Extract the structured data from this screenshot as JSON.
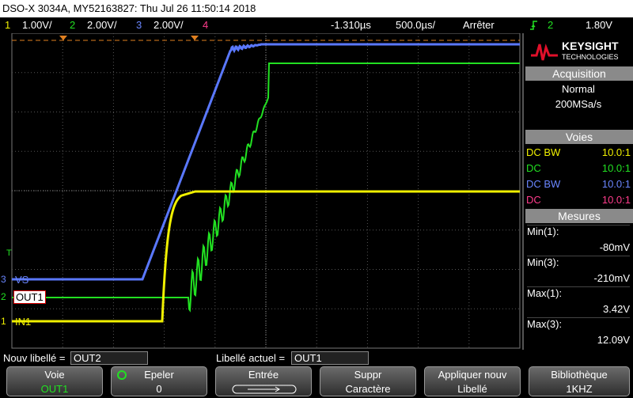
{
  "header": {
    "title": "DSO-X 3034A, MY52163827: Thu Jul 26 11:50:14 2018"
  },
  "status_bar": {
    "channels": [
      {
        "number": "1",
        "scale": "1.00V/"
      },
      {
        "number": "2",
        "scale": "2.00V/"
      },
      {
        "number": "3",
        "scale": "2.00V/"
      },
      {
        "number": "4"
      }
    ],
    "time_offset": "-1.310µs",
    "time_scale": "500.0µs/",
    "run_state": "Arrêter",
    "trigger_channel": "2",
    "trigger_level": "1.80V"
  },
  "side_panel": {
    "brand": "KEYSIGHT",
    "brand_sub": "TECHNOLOGIES",
    "acquisition": {
      "title": "Acquisition",
      "mode": "Normal",
      "rate": "200MSa/s"
    },
    "channels": {
      "title": "Voies",
      "rows": [
        {
          "coupling": "DC BW",
          "probe": "10.0:1"
        },
        {
          "coupling": "DC",
          "probe": "10.0:1"
        },
        {
          "coupling": "DC BW",
          "probe": "10.0:1"
        },
        {
          "coupling": "DC",
          "probe": "10.0:1"
        }
      ]
    },
    "measurements": {
      "title": "Mesures",
      "rows": [
        {
          "label": "Min(1):",
          "value": "-80mV"
        },
        {
          "label": "Min(3):",
          "value": "-210mV"
        },
        {
          "label": "Max(1):",
          "value": "3.42V"
        },
        {
          "label": "Max(3):",
          "value": "12.09V"
        }
      ]
    }
  },
  "waveform_labels": [
    {
      "channel": "3",
      "label": "VS"
    },
    {
      "channel": "2",
      "label": "OUT1"
    },
    {
      "channel": "1",
      "label": "IN1"
    }
  ],
  "trigger_marker": "T",
  "label_edit": {
    "new_label_caption": "Nouv libellé =",
    "new_label": "OUT2",
    "current_label_caption": "Libellé actuel =",
    "current_label": "OUT1"
  },
  "softkeys": [
    {
      "title": "Voie",
      "value": "OUT1"
    },
    {
      "title": "Epeler",
      "value": "0"
    },
    {
      "title": "Entrée"
    },
    {
      "title": "Suppr",
      "value": "Caractère"
    },
    {
      "title": "Appliquer nouv",
      "value": "Libellé"
    },
    {
      "title": "Bibliothèque",
      "value": "1KHZ"
    }
  ]
}
